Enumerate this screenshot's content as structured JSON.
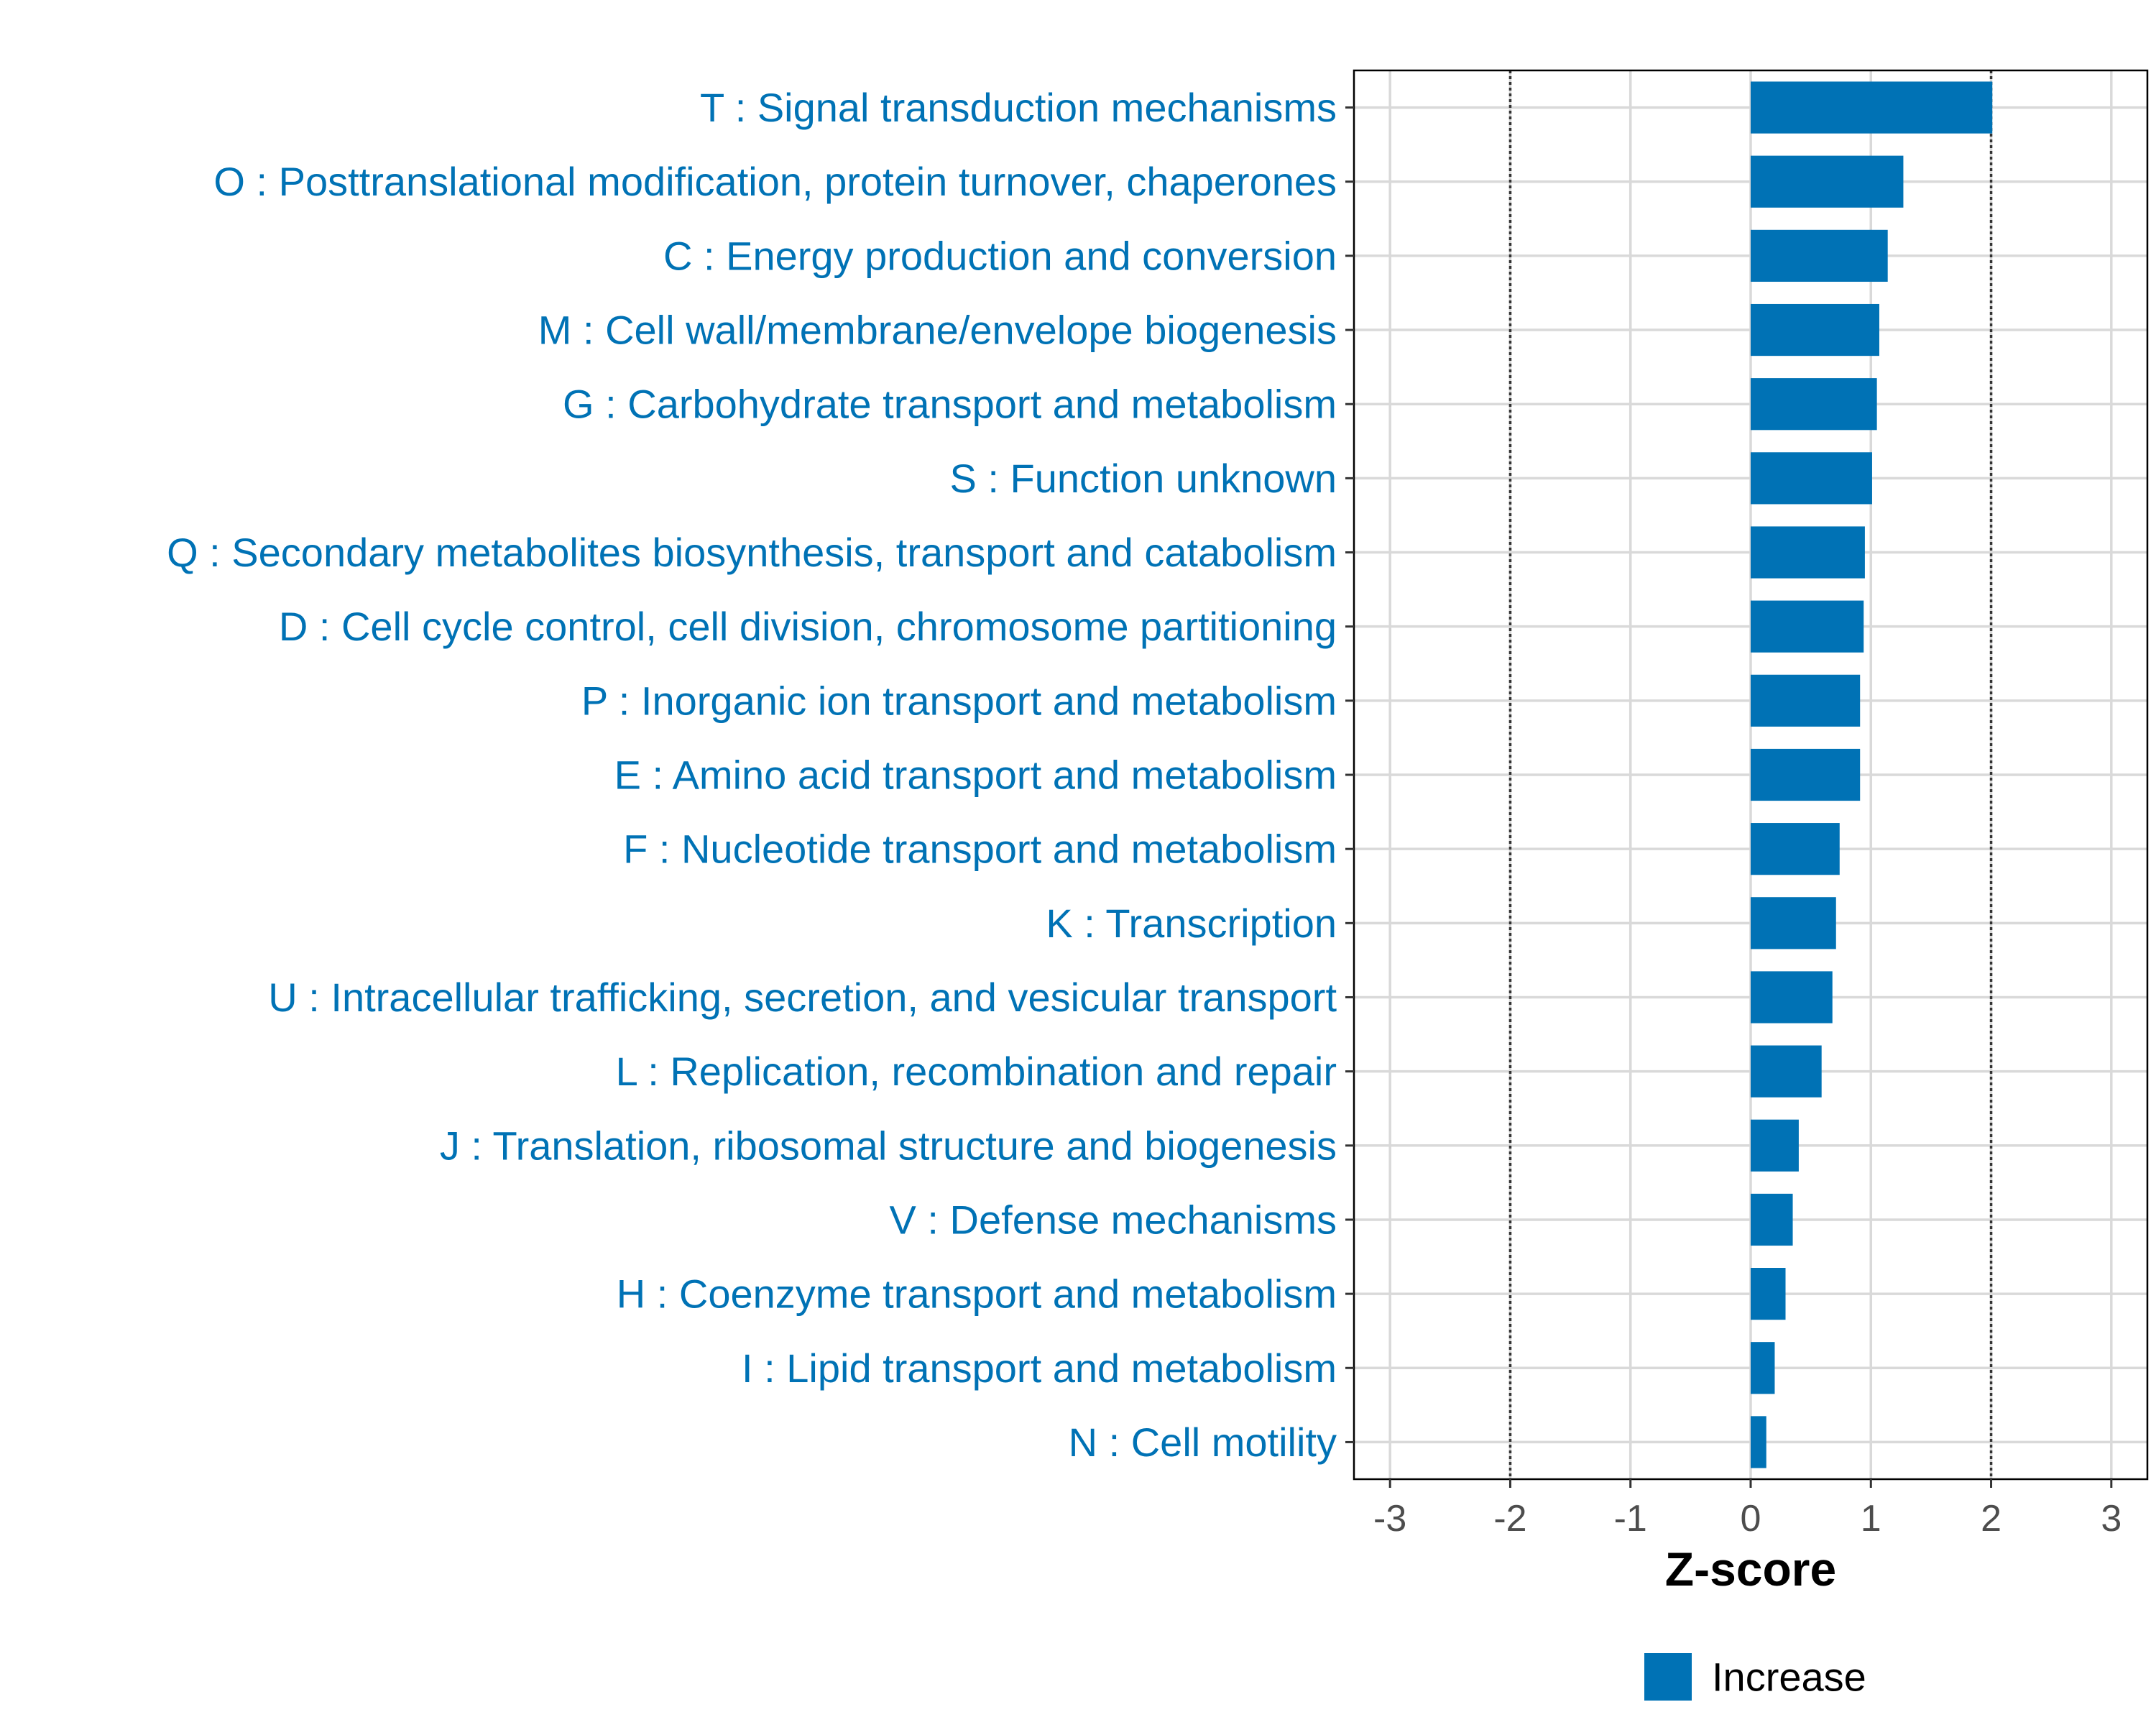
{
  "chart_data": {
    "type": "bar",
    "orientation": "horizontal",
    "categories": [
      "T : Signal transduction mechanisms",
      "O : Posttranslational modification, protein turnover, chaperones",
      "C : Energy production and conversion",
      "M : Cell wall/membrane/envelope biogenesis",
      "G : Carbohydrate transport and metabolism",
      "S : Function unknown",
      "Q : Secondary metabolites biosynthesis, transport and catabolism",
      "D : Cell cycle control, cell division, chromosome partitioning",
      "P : Inorganic ion transport and metabolism",
      "E : Amino acid transport and metabolism",
      "F : Nucleotide transport and metabolism",
      "K : Transcription",
      "U : Intracellular trafficking, secretion, and vesicular transport",
      "L : Replication, recombination and repair",
      "J : Translation, ribosomal structure and biogenesis",
      "V : Defense mechanisms",
      "H : Coenzyme transport and metabolism",
      "I : Lipid transport and metabolism",
      "N : Cell motility"
    ],
    "values": [
      2.01,
      1.27,
      1.14,
      1.07,
      1.05,
      1.01,
      0.95,
      0.94,
      0.91,
      0.91,
      0.74,
      0.71,
      0.68,
      0.59,
      0.4,
      0.35,
      0.29,
      0.2,
      0.13
    ],
    "xlabel": "Z-score",
    "ylabel": "",
    "xlim": [
      -3.3,
      3.3
    ],
    "xticks": [
      "-3",
      "-2",
      "-1",
      "0",
      "1",
      "2",
      "3"
    ],
    "reference_lines": [
      -2,
      2
    ],
    "grid": true,
    "legend": {
      "position": "bottom",
      "entries": [
        {
          "label": "Increase",
          "color": "#0072B5"
        }
      ]
    },
    "colors": {
      "bar": "#0072B5",
      "label": "#0072B5",
      "grid": "#D9D9D9",
      "tick": "#4D4D4D"
    }
  }
}
